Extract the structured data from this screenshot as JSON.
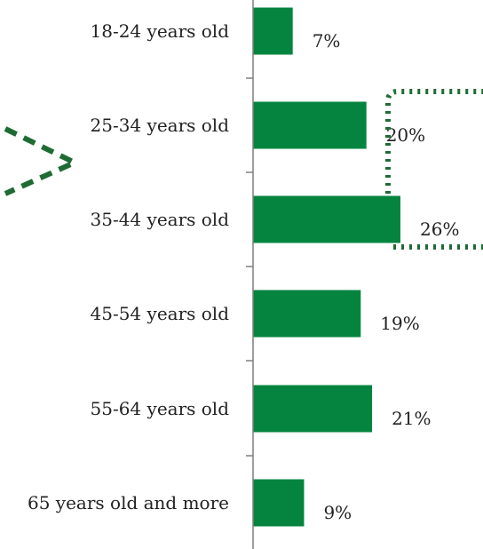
{
  "chart_data": {
    "type": "bar",
    "orientation": "horizontal",
    "categories": [
      "18-24 years old",
      "25-34 years old",
      "35-44 years old",
      "45-54 years old",
      "55-64 years old",
      "65 years old and more"
    ],
    "values": [
      7,
      20,
      26,
      19,
      21,
      9
    ],
    "value_labels": [
      "7%",
      "20%",
      "26%",
      "19%",
      "21%",
      "9%"
    ],
    "xlim": [
      0,
      26
    ],
    "grid": false,
    "title": "",
    "xlabel": "",
    "ylabel": ""
  },
  "annotations": {
    "highlight_bracket": {
      "categories": [
        "25-34 years old",
        "35-44 years old"
      ],
      "style": "dotted"
    },
    "pointer_arrow": {
      "points_to": [
        "25-34 years old",
        "35-44 years old"
      ],
      "style": "dashed"
    }
  },
  "colors": {
    "bar": "#04843F",
    "axis": "#7f7f7f",
    "text": "#222222",
    "annotation": "#1e6b33"
  }
}
